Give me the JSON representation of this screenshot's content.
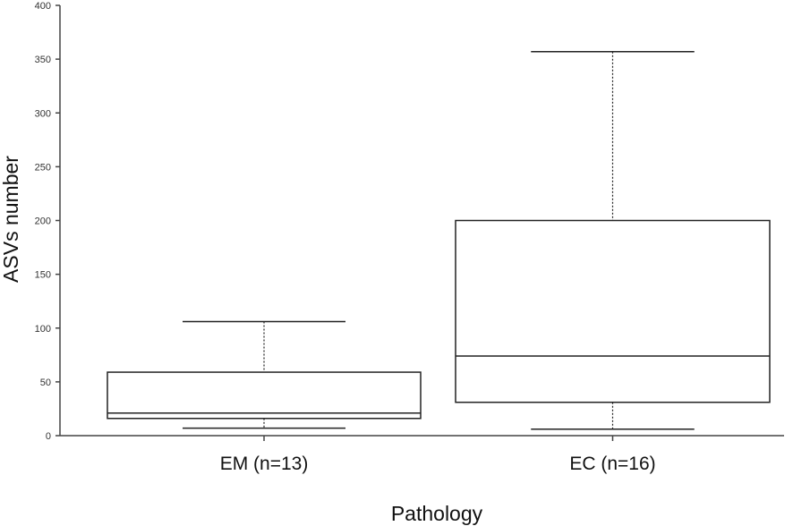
{
  "chart_data": {
    "type": "box",
    "xlabel": "Pathology",
    "ylabel": "ASVs number",
    "ylim": [
      0,
      400
    ],
    "yticks": [
      0,
      50,
      100,
      150,
      200,
      250,
      300,
      350,
      400
    ],
    "grid": false,
    "categories": [
      "EM (n=13)",
      "EC (n=16)"
    ],
    "boxes": [
      {
        "category": "EM (n=13)",
        "min": 7,
        "q1": 16,
        "median": 21,
        "q3": 59,
        "max": 106
      },
      {
        "category": "EC (n=16)",
        "min": 6,
        "q1": 31,
        "median": 74,
        "q3": 200,
        "max": 357
      }
    ],
    "colors": {
      "box_stroke": "#222222",
      "box_fill": "#ffffff",
      "axis": "#444444"
    }
  }
}
